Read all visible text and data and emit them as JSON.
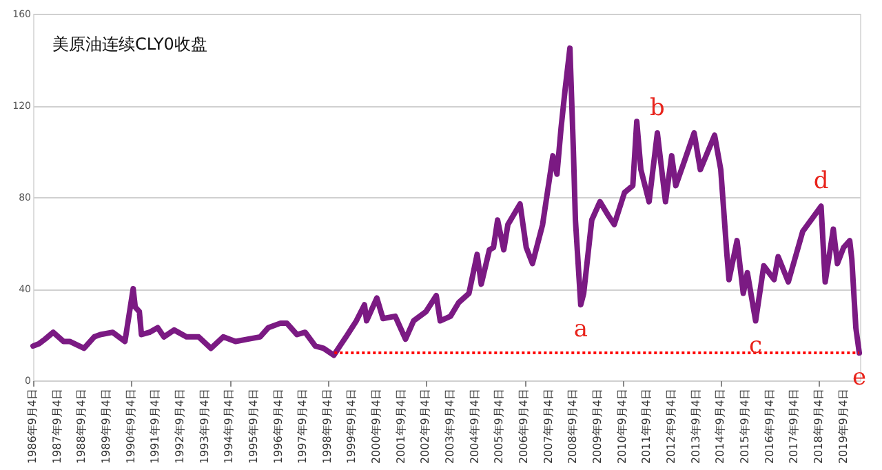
{
  "chart_data": {
    "type": "line",
    "title": "美原油连续CLY0收盘",
    "series": [
      {
        "type": "line",
        "color": "#7b1a83",
        "line_style": "solid",
        "x": [
          "1986-09-04",
          "1986-12",
          "1987-03",
          "1987-07",
          "1987-12",
          "1988-03",
          "1988-10",
          "1989-03",
          "1989-06",
          "1989-12",
          "1990-06",
          "1990-10",
          "1990-11",
          "1991-01",
          "1991-02",
          "1991-06",
          "1991-10",
          "1992-01",
          "1992-06",
          "1992-12",
          "1993-06",
          "1993-12",
          "1994-06",
          "1994-12",
          "1995-06",
          "1995-12",
          "1996-04",
          "1996-10",
          "1997-01",
          "1997-06",
          "1997-10",
          "1998-03",
          "1998-07",
          "1998-12",
          "1999-03",
          "1999-06",
          "1999-11",
          "2000-03",
          "2000-04",
          "2000-09",
          "2000-12",
          "2001-06",
          "2001-09",
          "2001-11",
          "2002-03",
          "2002-09",
          "2003-02",
          "2003-04",
          "2003-09",
          "2004-01",
          "2004-06",
          "2004-10",
          "2004-12",
          "2005-04",
          "2005-06",
          "2005-08",
          "2005-11",
          "2006-01",
          "2006-07",
          "2006-10",
          "2007-01",
          "2007-06",
          "2007-11",
          "2008-01",
          "2008-03",
          "2008-05",
          "2008-07-11",
          "2008-09",
          "2008-10",
          "2008-12-19",
          "2009-02",
          "2009-06",
          "2009-10",
          "2010-02",
          "2010-05",
          "2010-10",
          "2011-02",
          "2011-04",
          "2011-06",
          "2011-10",
          "2012-02",
          "2012-06",
          "2012-09",
          "2012-11",
          "2013-03",
          "2013-08",
          "2013-11",
          "2014-06",
          "2014-09",
          "2014-12",
          "2015-01",
          "2015-05",
          "2015-08",
          "2015-10",
          "2016-02",
          "2016-06",
          "2016-11",
          "2017-01",
          "2017-06",
          "2018-01",
          "2018-10",
          "2018-12",
          "2019-04",
          "2019-06",
          "2019-09",
          "2019-12",
          "2020-01",
          "2020-03",
          "2020-04-21"
        ],
        "values": [
          15,
          16,
          18,
          21,
          17,
          17,
          14,
          19,
          20,
          21,
          17,
          40,
          32,
          30,
          20,
          21,
          23,
          19,
          22,
          19,
          19,
          14,
          19,
          17,
          18,
          19,
          23,
          25,
          25,
          20,
          21,
          15,
          14,
          11,
          15,
          19,
          26,
          33,
          26,
          36,
          27,
          28,
          22,
          18,
          26,
          30,
          37,
          26,
          28,
          34,
          38,
          55,
          42,
          57,
          58,
          70,
          57,
          68,
          77,
          58,
          51,
          68,
          98,
          90,
          110,
          127,
          145,
          100,
          70,
          33,
          38,
          70,
          78,
          72,
          68,
          82,
          85,
          113,
          92,
          78,
          108,
          78,
          98,
          85,
          95,
          108,
          92,
          107,
          92,
          55,
          44,
          61,
          38,
          47,
          26,
          50,
          44,
          54,
          43,
          65,
          76,
          43,
          66,
          51,
          58,
          61,
          53,
          23,
          12
        ]
      },
      {
        "type": "line",
        "color": "#ff0000",
        "line_style": "dotted",
        "x": [
          "1998-12-10",
          "2020-04-21"
        ],
        "values": [
          12,
          12
        ]
      }
    ],
    "annotations": [
      {
        "text": "a",
        "x": "2008-12-19",
        "y": 33
      },
      {
        "text": "b",
        "x": "2012-02",
        "y": 108
      },
      {
        "text": "c",
        "x": "2016-02",
        "y": 26
      },
      {
        "text": "d",
        "x": "2018-10",
        "y": 76
      },
      {
        "text": "e",
        "x": "2020-04-21",
        "y": 12
      }
    ],
    "xlim": [
      "1986-09-04",
      "2020-05-01"
    ],
    "xticks": [
      {
        "value": "1986-09-04",
        "label": "1986年9月4日"
      },
      {
        "value": "1987-09-04",
        "label": "1987年9月4日"
      },
      {
        "value": "1988-09-04",
        "label": "1988年9月4日"
      },
      {
        "value": "1989-09-04",
        "label": "1989年9月4日"
      },
      {
        "value": "1990-09-04",
        "label": "1990年9月4日"
      },
      {
        "value": "1991-09-04",
        "label": "1991年9月4日"
      },
      {
        "value": "1992-09-04",
        "label": "1992年9月4日"
      },
      {
        "value": "1993-09-04",
        "label": "1993年9月4日"
      },
      {
        "value": "1994-09-04",
        "label": "1994年9月4日"
      },
      {
        "value": "1995-09-04",
        "label": "1995年9月4日"
      },
      {
        "value": "1996-09-04",
        "label": "1996年9月4日"
      },
      {
        "value": "1997-09-04",
        "label": "1997年9月4日"
      },
      {
        "value": "1998-09-04",
        "label": "1998年9月4日"
      },
      {
        "value": "1999-09-04",
        "label": "1999年9月4日"
      },
      {
        "value": "2000-09-04",
        "label": "2000年9月4日"
      },
      {
        "value": "2001-09-04",
        "label": "2001年9月4日"
      },
      {
        "value": "2002-09-04",
        "label": "2002年9月4日"
      },
      {
        "value": "2003-09-04",
        "label": "2003年9月4日"
      },
      {
        "value": "2004-09-04",
        "label": "2004年9月4日"
      },
      {
        "value": "2005-09-04",
        "label": "2005年9月4日"
      },
      {
        "value": "2006-09-04",
        "label": "2006年9月4日"
      },
      {
        "value": "2007-09-04",
        "label": "2007年9月4日"
      },
      {
        "value": "2008-09-04",
        "label": "2008年9月4日"
      },
      {
        "value": "2009-09-04",
        "label": "2009年9月4日"
      },
      {
        "value": "2010-09-04",
        "label": "2010年9月4日"
      },
      {
        "value": "2011-09-04",
        "label": "2011年9月4日"
      },
      {
        "value": "2012-09-04",
        "label": "2012年9月4日"
      },
      {
        "value": "2013-09-04",
        "label": "2013年9月4日"
      },
      {
        "value": "2014-09-04",
        "label": "2014年9月4日"
      },
      {
        "value": "2015-09-04",
        "label": "2015年9月4日"
      },
      {
        "value": "2016-09-04",
        "label": "2016年9月4日"
      },
      {
        "value": "2017-09-04",
        "label": "2017年9月4日"
      },
      {
        "value": "2018-09-04",
        "label": "2018年9月4日"
      },
      {
        "value": "2019-09-04",
        "label": "2019年9月4日"
      }
    ],
    "ylim": [
      0,
      160
    ],
    "yticks": [
      0,
      40,
      80,
      120,
      160
    ],
    "grid": "y"
  }
}
